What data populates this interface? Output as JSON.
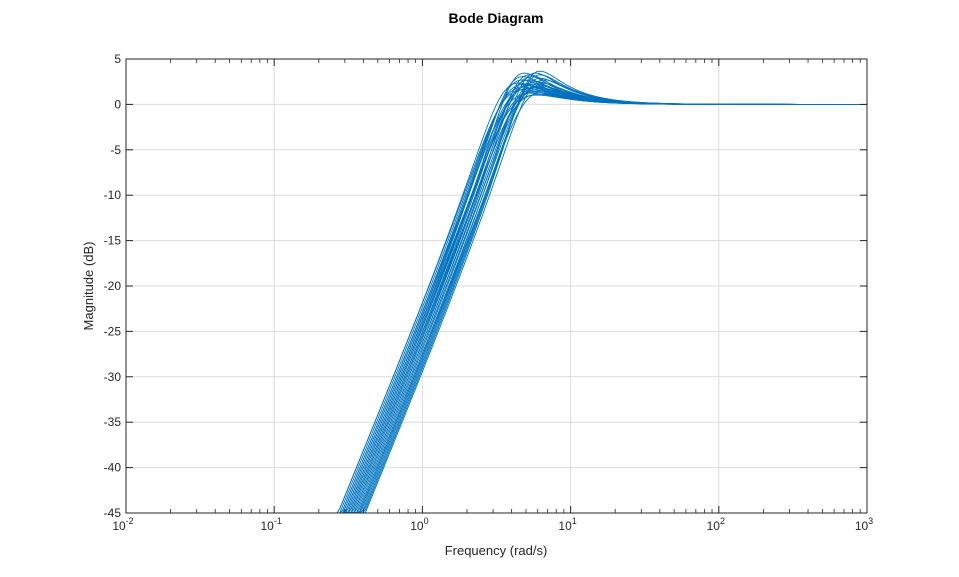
{
  "chart_data": {
    "type": "line",
    "title": "Bode Diagram",
    "xlabel": "Frequency (rad/s)",
    "ylabel": "Magnitude (dB)",
    "x_scale": "log",
    "xlim": [
      0.01,
      1000
    ],
    "ylim": [
      -45,
      5
    ],
    "x_ticks": [
      {
        "value": 0.01,
        "base": "10",
        "exp": "-2"
      },
      {
        "value": 0.1,
        "base": "10",
        "exp": "-1"
      },
      {
        "value": 1,
        "base": "10",
        "exp": "0"
      },
      {
        "value": 10,
        "base": "10",
        "exp": "1"
      },
      {
        "value": 100,
        "base": "10",
        "exp": "2"
      },
      {
        "value": 1000,
        "base": "10",
        "exp": "3"
      }
    ],
    "y_ticks": [
      {
        "value": 5,
        "label": "5"
      },
      {
        "value": 0,
        "label": "0"
      },
      {
        "value": -5,
        "label": "-5"
      },
      {
        "value": -10,
        "label": "-10"
      },
      {
        "value": -15,
        "label": "-15"
      },
      {
        "value": -20,
        "label": "-20"
      },
      {
        "value": -25,
        "label": "-25"
      },
      {
        "value": -30,
        "label": "-30"
      },
      {
        "value": -35,
        "label": "-35"
      },
      {
        "value": -40,
        "label": "-40"
      },
      {
        "value": -45,
        "label": "-45"
      }
    ],
    "grid": true,
    "line_color": "#0072BD",
    "series_model": "second-order high-pass family, 40 dB/decade low-frequency slope",
    "series": [
      {
        "wn": 3.6,
        "zeta": 0.42
      },
      {
        "wn": 3.9,
        "zeta": 0.46
      },
      {
        "wn": 4.1,
        "zeta": 0.44
      },
      {
        "wn": 4.3,
        "zeta": 0.4
      },
      {
        "wn": 4.6,
        "zeta": 0.38
      },
      {
        "wn": 5.0,
        "zeta": 0.36
      },
      {
        "wn": 5.4,
        "zeta": 0.35
      },
      {
        "wn": 3.8,
        "zeta": 0.5
      },
      {
        "wn": 4.0,
        "zeta": 0.52
      },
      {
        "wn": 4.4,
        "zeta": 0.48
      },
      {
        "wn": 3.7,
        "zeta": 0.45
      },
      {
        "wn": 4.8,
        "zeta": 0.41
      },
      {
        "wn": 5.2,
        "zeta": 0.39
      },
      {
        "wn": 4.2,
        "zeta": 0.43
      },
      {
        "wn": 3.6,
        "zeta": 0.47
      },
      {
        "wn": 4.5,
        "zeta": 0.37
      },
      {
        "wn": 5.1,
        "zeta": 0.42
      },
      {
        "wn": 4.7,
        "zeta": 0.46
      },
      {
        "wn": 3.9,
        "zeta": 0.4
      },
      {
        "wn": 4.1,
        "zeta": 0.49
      },
      {
        "wn": 5.3,
        "zeta": 0.37
      },
      {
        "wn": 4.9,
        "zeta": 0.44
      },
      {
        "wn": 4.3,
        "zeta": 0.51
      },
      {
        "wn": 3.8,
        "zeta": 0.43
      },
      {
        "wn": 4.6,
        "zeta": 0.45
      },
      {
        "wn": 5.5,
        "zeta": 0.4
      },
      {
        "wn": 4.0,
        "zeta": 0.38
      },
      {
        "wn": 4.4,
        "zeta": 0.42
      },
      {
        "wn": 5.0,
        "zeta": 0.48
      },
      {
        "wn": 4.2,
        "zeta": 0.36
      }
    ]
  }
}
